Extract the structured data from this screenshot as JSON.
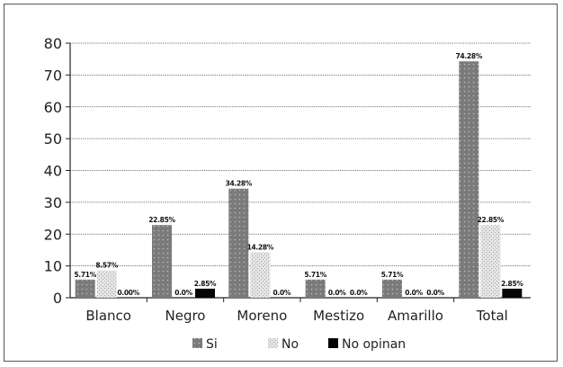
{
  "chart_data": {
    "type": "bar",
    "categories": [
      "Blanco",
      "Negro",
      "Moreno",
      "Mestizo",
      "Amarillo",
      "Total"
    ],
    "series": [
      {
        "name": "Si",
        "values": [
          5.71,
          22.85,
          34.28,
          5.71,
          5.71,
          74.28
        ],
        "labels": [
          "5.71%",
          "22.85%",
          "34.28%",
          "5.71%",
          "5.71%",
          "74.28%"
        ],
        "color": "#777777"
      },
      {
        "name": "No",
        "values": [
          8.57,
          0,
          14.28,
          0,
          0,
          22.85
        ],
        "labels": [
          "8.57%",
          "0.0%",
          "14.28%",
          "0.0%",
          "0.0%",
          "22.85%"
        ],
        "color": "#d8d8d8"
      },
      {
        "name": "No opinan",
        "values": [
          0,
          2.85,
          0,
          0,
          0,
          2.85
        ],
        "labels": [
          "0.00%",
          "2.85%",
          "0.0%",
          "0.0%",
          "0.0%",
          "2.85%"
        ],
        "color": "#000000"
      }
    ],
    "yticks": [
      0,
      10,
      20,
      30,
      40,
      50,
      60,
      70,
      80
    ],
    "ylim": [
      0,
      80
    ],
    "grid": true,
    "legend": "bottom",
    "title": "",
    "xlabel": "",
    "ylabel": ""
  }
}
